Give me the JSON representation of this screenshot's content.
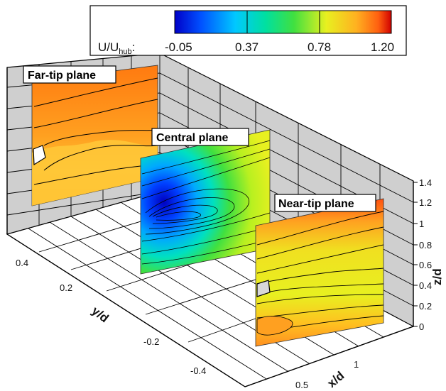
{
  "chart_data": {
    "type": "contour",
    "colorbar": {
      "label_main": "U/U",
      "label_sub": "hub",
      "label_suffix": ":",
      "ticks": [
        "-0.05",
        "0.37",
        "0.78",
        "1.20"
      ],
      "range": [
        -0.05,
        1.2
      ]
    },
    "axes": {
      "x": {
        "label": "x/d",
        "ticks": [
          "0.5",
          "1"
        ]
      },
      "y": {
        "label": "y/d",
        "ticks": [
          "0.4",
          "0.2",
          "-0.2",
          "-0.4"
        ]
      },
      "z": {
        "label": "z/d",
        "ticks": [
          "0",
          "0.2",
          "0.4",
          "0.6",
          "0.8",
          "1",
          "1.2",
          "1.4"
        ]
      }
    },
    "planes": [
      {
        "name": "Far-tip plane"
      },
      {
        "name": "Central plane"
      },
      {
        "name": "Near-tip plane"
      }
    ],
    "grid": true
  }
}
